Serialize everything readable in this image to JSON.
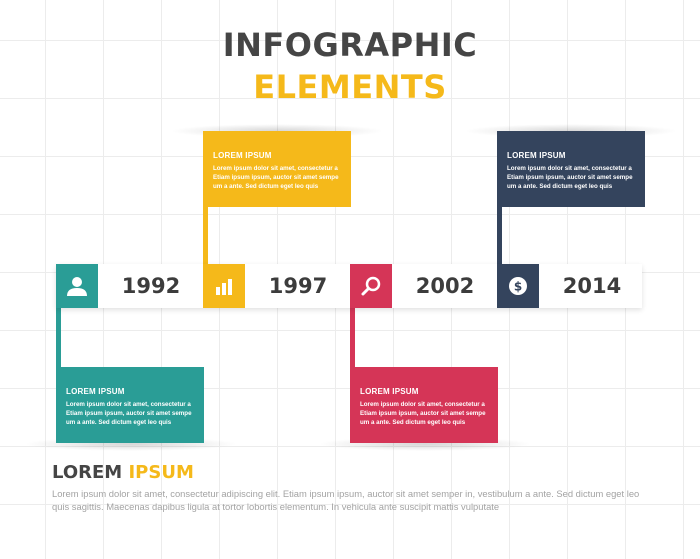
{
  "title": {
    "line1": "INFOGRAPHIC",
    "line2": "ELEMENTS"
  },
  "colors": {
    "yellow": "#f5b91a",
    "navy": "#34445d",
    "teal": "#2a9d96",
    "red": "#d53557"
  },
  "cards": [
    {
      "heading": "LOREM IPSUM",
      "text": "Lorem ipsum dolor sit amet, consectetur a Etiam ipsum ipsum, auctor sit amet sempe um a ante. Sed dictum eget leo quis"
    },
    {
      "heading": "LOREM IPSUM",
      "text": "Lorem ipsum dolor sit amet, consectetur a Etiam ipsum ipsum, auctor sit amet sempe um a ante. Sed dictum eget leo quis"
    },
    {
      "heading": "LOREM IPSUM",
      "text": "Lorem ipsum dolor sit amet, consectetur a Etiam ipsum ipsum, auctor sit amet sempe um a ante. Sed dictum eget leo quis"
    },
    {
      "heading": "LOREM IPSUM",
      "text": "Lorem ipsum dolor sit amet, consectetur a Etiam ipsum ipsum, auctor sit amet sempe um a ante. Sed dictum eget leo quis"
    }
  ],
  "timeline": [
    {
      "year": "1992",
      "icon": "user-icon"
    },
    {
      "year": "1997",
      "icon": "bar-chart-icon"
    },
    {
      "year": "2002",
      "icon": "search-icon"
    },
    {
      "year": "2014",
      "icon": "dollar-icon"
    }
  ],
  "footer": {
    "title_word1": "LOREM",
    "title_word2": "IPSUM",
    "text": "Lorem ipsum dolor sit amet, consectetur adipiscing elit. Etiam ipsum ipsum, auctor sit amet semper in, vestibulum a ante. Sed dictum eget leo quis sagittis. Maecenas dapibus ligula at tortor lobortis elementum. In vehicula ante suscipit mattis vulputate"
  }
}
